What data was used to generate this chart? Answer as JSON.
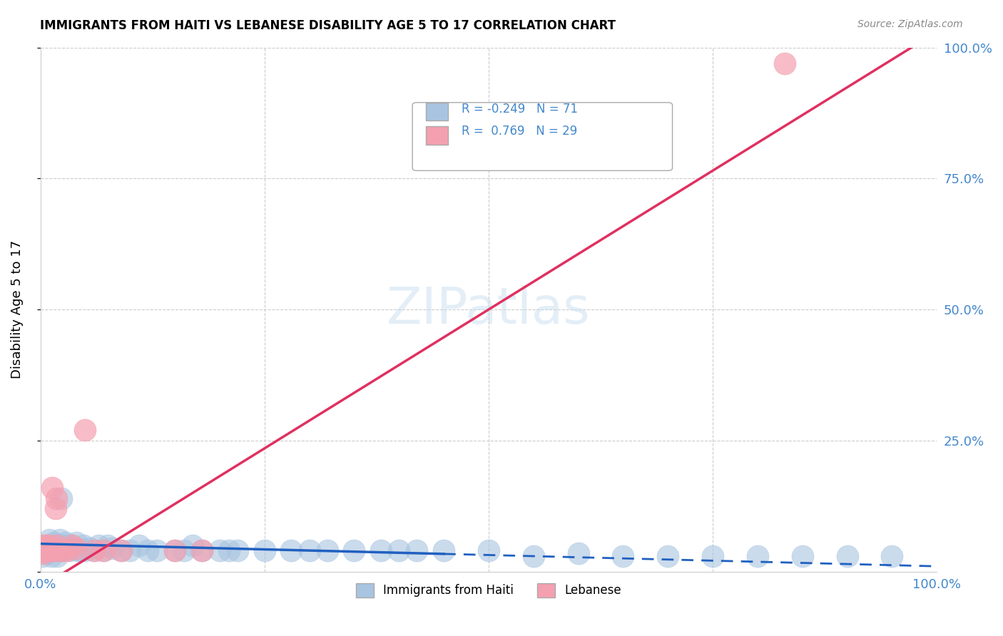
{
  "title": "IMMIGRANTS FROM HAITI VS LEBANESE DISABILITY AGE 5 TO 17 CORRELATION CHART",
  "source": "Source: ZipAtlas.com",
  "xlabel": "",
  "ylabel": "Disability Age 5 to 17",
  "xlim": [
    0,
    1.0
  ],
  "ylim": [
    0,
    1.0
  ],
  "xtick_labels": [
    "0.0%",
    "100.0%"
  ],
  "ytick_labels_right": [
    "0.0%",
    "25.0%",
    "50.0%",
    "75.0%",
    "100.0%"
  ],
  "watermark": "ZIPatlas",
  "haiti_R": -0.249,
  "haiti_N": 71,
  "lebanese_R": 0.769,
  "lebanese_N": 29,
  "haiti_color": "#a8c4e0",
  "lebanese_color": "#f4a0b0",
  "haiti_line_color": "#2060c0",
  "lebanese_line_color": "#e03060",
  "haiti_scatter": {
    "x": [
      0.001,
      0.002,
      0.003,
      0.005,
      0.006,
      0.007,
      0.008,
      0.009,
      0.01,
      0.011,
      0.012,
      0.013,
      0.014,
      0.015,
      0.016,
      0.017,
      0.018,
      0.019,
      0.02,
      0.021,
      0.022,
      0.023,
      0.025,
      0.026,
      0.028,
      0.03,
      0.032,
      0.035,
      0.038,
      0.04,
      0.042,
      0.045,
      0.048,
      0.05,
      0.055,
      0.06,
      0.065,
      0.07,
      0.075,
      0.08,
      0.09,
      0.1,
      0.11,
      0.12,
      0.13,
      0.15,
      0.16,
      0.17,
      0.18,
      0.2,
      0.21,
      0.22,
      0.25,
      0.28,
      0.3,
      0.32,
      0.35,
      0.38,
      0.4,
      0.42,
      0.45,
      0.5,
      0.55,
      0.6,
      0.65,
      0.7,
      0.75,
      0.8,
      0.85,
      0.9,
      0.95
    ],
    "y": [
      0.04,
      0.05,
      0.03,
      0.04,
      0.05,
      0.035,
      0.045,
      0.05,
      0.06,
      0.04,
      0.03,
      0.05,
      0.04,
      0.055,
      0.04,
      0.05,
      0.045,
      0.03,
      0.05,
      0.04,
      0.06,
      0.14,
      0.05,
      0.04,
      0.055,
      0.05,
      0.04,
      0.05,
      0.045,
      0.055,
      0.04,
      0.04,
      0.05,
      0.04,
      0.045,
      0.04,
      0.05,
      0.04,
      0.05,
      0.045,
      0.04,
      0.04,
      0.05,
      0.04,
      0.04,
      0.04,
      0.04,
      0.05,
      0.04,
      0.04,
      0.04,
      0.04,
      0.04,
      0.04,
      0.04,
      0.04,
      0.04,
      0.04,
      0.04,
      0.04,
      0.04,
      0.04,
      0.03,
      0.035,
      0.03,
      0.03,
      0.03,
      0.03,
      0.03,
      0.03,
      0.03
    ]
  },
  "lebanese_scatter": {
    "x": [
      0.001,
      0.002,
      0.003,
      0.004,
      0.005,
      0.006,
      0.007,
      0.008,
      0.009,
      0.01,
      0.012,
      0.013,
      0.015,
      0.016,
      0.017,
      0.018,
      0.019,
      0.02,
      0.025,
      0.03,
      0.035,
      0.04,
      0.05,
      0.06,
      0.07,
      0.09,
      0.15,
      0.18,
      0.83
    ],
    "y": [
      0.04,
      0.05,
      0.035,
      0.04,
      0.045,
      0.05,
      0.04,
      0.045,
      0.04,
      0.05,
      0.04,
      0.16,
      0.04,
      0.045,
      0.12,
      0.14,
      0.05,
      0.04,
      0.04,
      0.04,
      0.05,
      0.045,
      0.27,
      0.04,
      0.04,
      0.04,
      0.04,
      0.04,
      0.97
    ]
  }
}
